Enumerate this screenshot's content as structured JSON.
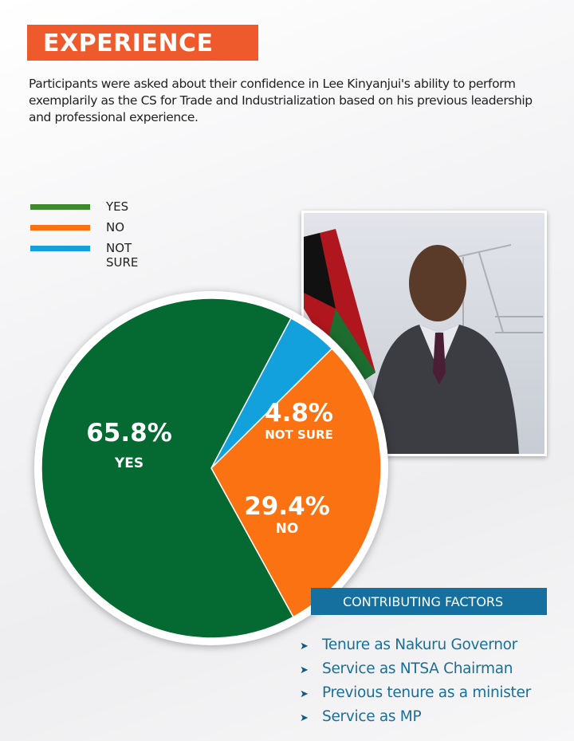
{
  "header": {
    "title": "EXPERIENCE",
    "intro": "Participants were asked about their confidence in Lee Kinyanjui's ability to perform exemplarily as the CS for Trade and Industrialization based on his previous leadership and professional experience."
  },
  "chart_data": {
    "type": "pie",
    "title": "EXPERIENCE",
    "categories": [
      "YES",
      "NO",
      "NOT SURE"
    ],
    "values": [
      65.8,
      29.4,
      4.8
    ],
    "labels": [
      "65.8%",
      "29.4%",
      "4.8%"
    ],
    "colors": [
      "#046a32",
      "#fb7212",
      "#12a1dc"
    ],
    "legend": "top-left"
  },
  "factors": {
    "heading": "CONTRIBUTING FACTORS",
    "items": [
      "Tenure as Nakuru Governor",
      "Service as NTSA Chairman",
      "Previous tenure as a minister",
      "Service as MP"
    ]
  }
}
